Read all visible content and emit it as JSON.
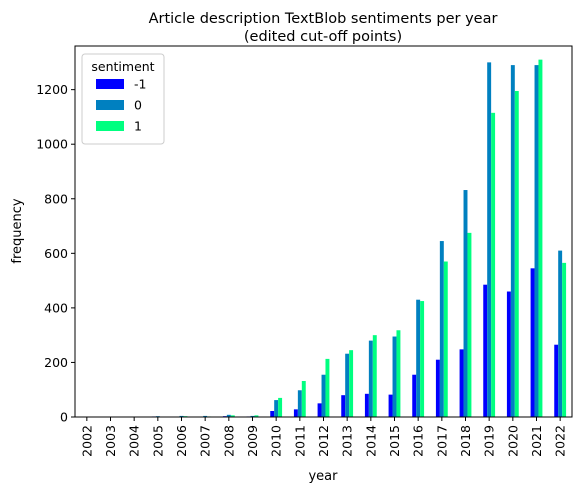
{
  "chart_data": {
    "type": "bar",
    "title_line1": "Article description TextBlob sentiments per year",
    "title_line2": "(edited cut-off points)",
    "xlabel": "year",
    "ylabel": "frequency",
    "ylim": [
      0,
      1360
    ],
    "yticks": [
      0,
      200,
      400,
      600,
      800,
      1000,
      1200
    ],
    "categories": [
      "2002",
      "2003",
      "2004",
      "2005",
      "2006",
      "2007",
      "2008",
      "2009",
      "2010",
      "2011",
      "2012",
      "2013",
      "2014",
      "2015",
      "2016",
      "2017",
      "2018",
      "2019",
      "2020",
      "2021",
      "2022"
    ],
    "legend": {
      "title": "sentiment",
      "position": "top-left"
    },
    "series": [
      {
        "name": "-1",
        "color": "#0000ff",
        "values": [
          0,
          0,
          0,
          2,
          1,
          1,
          3,
          2,
          22,
          28,
          50,
          80,
          85,
          82,
          155,
          210,
          248,
          485,
          460,
          545,
          265
        ]
      },
      {
        "name": "0",
        "color": "#0080c0",
        "values": [
          0,
          0,
          0,
          3,
          4,
          4,
          8,
          4,
          62,
          98,
          155,
          232,
          280,
          295,
          430,
          645,
          832,
          1300,
          1290,
          1290,
          610
        ]
      },
      {
        "name": "1",
        "color": "#00ff80",
        "values": [
          0,
          0,
          0,
          1,
          3,
          2,
          6,
          6,
          70,
          132,
          213,
          245,
          300,
          318,
          425,
          570,
          675,
          1115,
          1195,
          1310,
          565
        ]
      }
    ]
  }
}
